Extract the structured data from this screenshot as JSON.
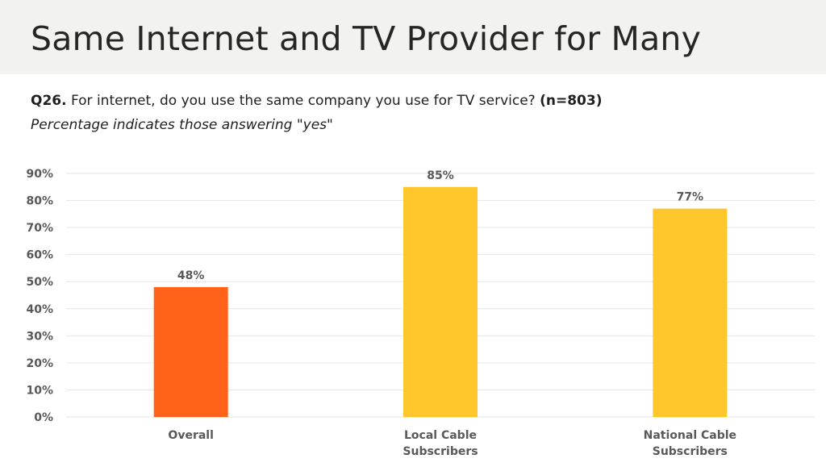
{
  "slide": {
    "title": "Same Internet and TV Provider for Many",
    "question_prefix": "Q26.",
    "question_text": "For internet, do you use the same company you use for TV service?",
    "question_n": "(n=803)",
    "subtitle": "Percentage indicates those answering \"yes\""
  },
  "chart_data": {
    "type": "bar",
    "categories": [
      [
        "Overall"
      ],
      [
        "Local Cable",
        "Subscribers"
      ],
      [
        "National Cable",
        "Subscribers"
      ]
    ],
    "values": [
      48,
      85,
      77
    ],
    "data_labels": [
      "48%",
      "85%",
      "77%"
    ],
    "ylim": [
      0,
      90
    ],
    "yticks": [
      0,
      10,
      20,
      30,
      40,
      50,
      60,
      70,
      80,
      90
    ],
    "ytick_labels": [
      "0%",
      "10%",
      "20%",
      "30%",
      "40%",
      "50%",
      "60%",
      "70%",
      "80%",
      "90%"
    ],
    "grid": true,
    "bar_colors": [
      "#ff6218",
      "#ffc72c",
      "#ffc72c"
    ],
    "grid_color": "#e6e6e6",
    "text_color": "#595959"
  }
}
